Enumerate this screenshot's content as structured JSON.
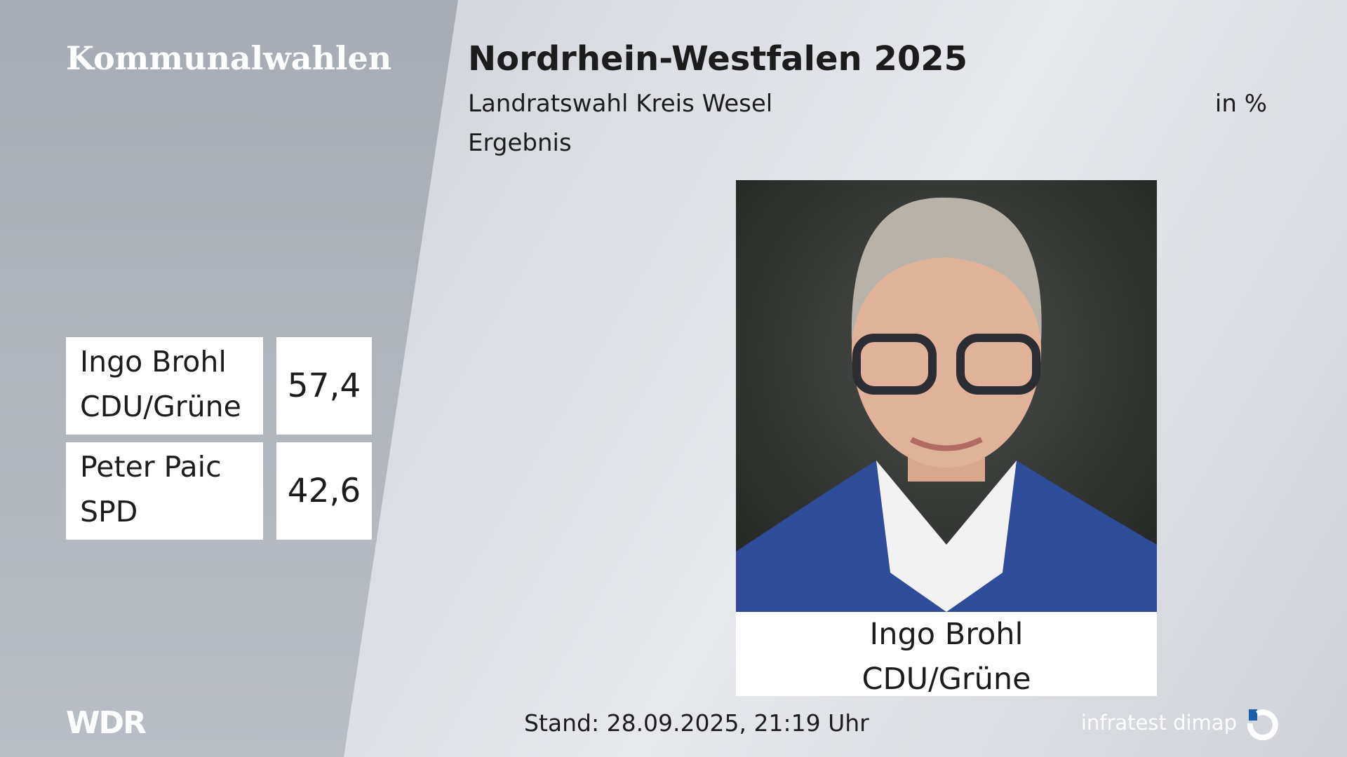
{
  "header": {
    "brand": "Kommunalwahlen",
    "title": "Nordrhein-Westfalen 2025",
    "subtitle": "Landratswahl Kreis Wesel",
    "unit": "in %",
    "status": "Ergebnis"
  },
  "results": [
    {
      "name": "Ingo Brohl",
      "party": "CDU/Grüne",
      "value": "57,4"
    },
    {
      "name": "Peter Paic",
      "party": "SPD",
      "value": "42,6"
    }
  ],
  "photo": {
    "name": "Ingo Brohl",
    "party": "CDU/Grüne"
  },
  "footer": {
    "broadcaster": "WDR",
    "timestamp": "Stand: 28.09.2025, 21:19 Uhr",
    "pollster": "infratest dimap"
  }
}
